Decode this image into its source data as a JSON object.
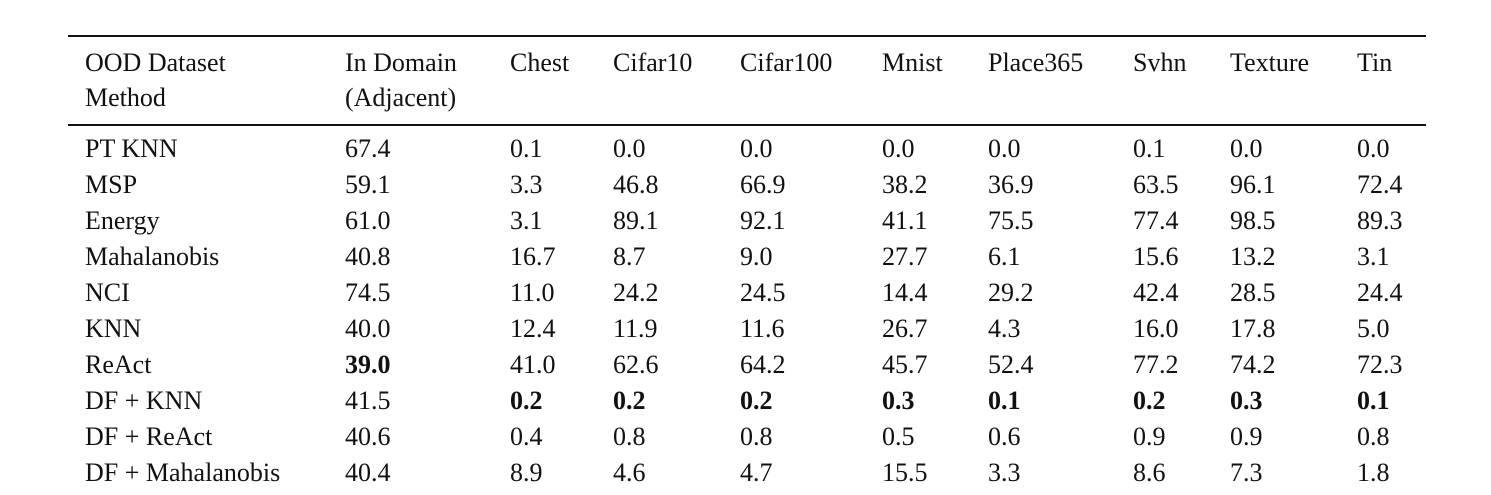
{
  "table": {
    "header": [
      [
        "OOD Dataset",
        "Method"
      ],
      [
        "In Domain",
        "(Adjacent)"
      ],
      [
        "Chest"
      ],
      [
        "Cifar10"
      ],
      [
        "Cifar100"
      ],
      [
        "Mnist"
      ],
      [
        "Place365"
      ],
      [
        "Svhn"
      ],
      [
        "Texture"
      ],
      [
        "Tin"
      ]
    ],
    "rows": [
      {
        "cells": [
          "PT KNN",
          "67.4",
          "0.1",
          "0.0",
          "0.0",
          "0.0",
          "0.0",
          "0.1",
          "0.0",
          "0.0"
        ],
        "bold": []
      },
      {
        "cells": [
          "MSP",
          "59.1",
          "3.3",
          "46.8",
          "66.9",
          "38.2",
          "36.9",
          "63.5",
          "96.1",
          "72.4"
        ],
        "bold": []
      },
      {
        "cells": [
          "Energy",
          "61.0",
          "3.1",
          "89.1",
          "92.1",
          "41.1",
          "75.5",
          "77.4",
          "98.5",
          "89.3"
        ],
        "bold": []
      },
      {
        "cells": [
          "Mahalanobis",
          "40.8",
          "16.7",
          "8.7",
          "9.0",
          "27.7",
          "6.1",
          "15.6",
          "13.2",
          "3.1"
        ],
        "bold": []
      },
      {
        "cells": [
          "NCI",
          "74.5",
          "11.0",
          "24.2",
          "24.5",
          "14.4",
          "29.2",
          "42.4",
          "28.5",
          "24.4"
        ],
        "bold": []
      },
      {
        "cells": [
          "KNN",
          "40.0",
          "12.4",
          "11.9",
          "11.6",
          "26.7",
          "4.3",
          "16.0",
          "17.8",
          "5.0"
        ],
        "bold": []
      },
      {
        "cells": [
          "ReAct",
          "39.0",
          "41.0",
          "62.6",
          "64.2",
          "45.7",
          "52.4",
          "77.2",
          "74.2",
          "72.3"
        ],
        "bold": [
          1
        ]
      },
      {
        "cells": [
          "DF + KNN",
          "41.5",
          "0.2",
          "0.2",
          "0.2",
          "0.3",
          "0.1",
          "0.2",
          "0.3",
          "0.1"
        ],
        "bold": [
          2,
          3,
          4,
          5,
          6,
          7,
          8,
          9
        ]
      },
      {
        "cells": [
          "DF + ReAct",
          "40.6",
          "0.4",
          "0.8",
          "0.8",
          "0.5",
          "0.6",
          "0.9",
          "0.9",
          "0.8"
        ],
        "bold": []
      },
      {
        "cells": [
          "DF + Mahalanobis",
          "40.4",
          "8.9",
          "4.6",
          "4.7",
          "15.5",
          "3.3",
          "8.6",
          "7.3",
          "1.8"
        ],
        "bold": []
      }
    ]
  }
}
